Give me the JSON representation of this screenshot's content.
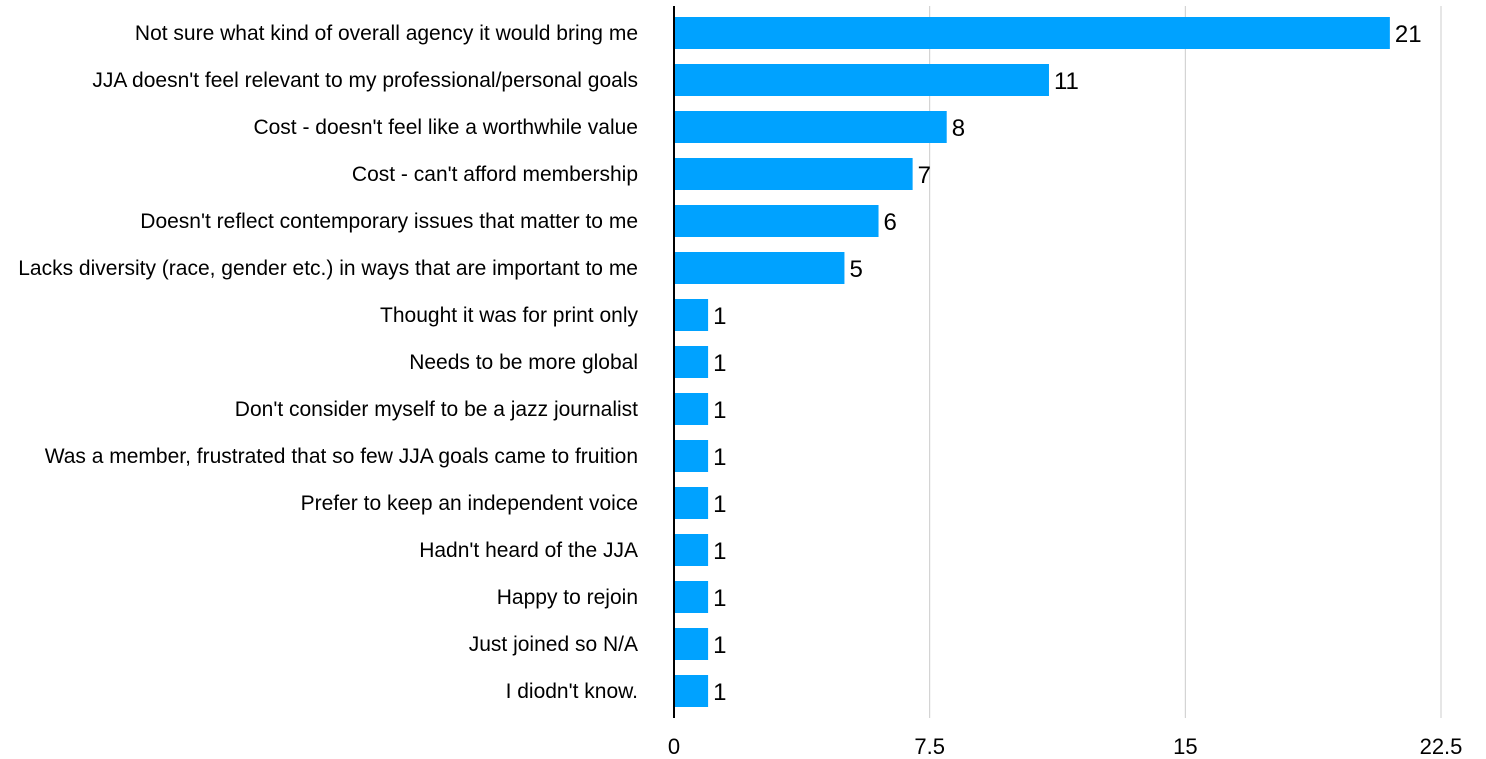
{
  "chart_data": {
    "type": "bar",
    "orientation": "horizontal",
    "categories": [
      "Not sure what kind of overall agency it would bring me",
      "JJA doesn't feel relevant to my professional/personal goals",
      "Cost - doesn't feel like a worthwhile value",
      "Cost - can't afford membership",
      "Doesn't reflect contemporary issues that matter to me",
      "Lacks diversity (race, gender etc.) in ways that are important to me",
      "Thought it was for print only",
      "Needs to be more global",
      "Don't consider myself to be a jazz journalist",
      "Was a member, frustrated that so few JJA goals came to fruition",
      "Prefer to keep an independent voice",
      "Hadn't heard of the JJA",
      "Happy to rejoin",
      "Just joined so N/A",
      "I diodn't know."
    ],
    "values": [
      21,
      11,
      8,
      7,
      6,
      5,
      1,
      1,
      1,
      1,
      1,
      1,
      1,
      1,
      1
    ],
    "value_labels": [
      "21",
      "11",
      "8",
      "7",
      "6",
      "5",
      "1",
      "1",
      "1",
      "1",
      "1",
      "1",
      "1",
      "1",
      "1"
    ],
    "xlim": [
      0,
      22.5
    ],
    "xticks": [
      0,
      7.5,
      15,
      22.5
    ],
    "xtick_labels": [
      "0",
      "7.5",
      "15",
      "22.5"
    ],
    "title": "",
    "xlabel": "",
    "ylabel": "",
    "grid": "vertical",
    "legend": "none",
    "colors": {
      "bar": "#00A2FF",
      "grid": "#CCCCCC",
      "axis": "#000000",
      "text": "#000000"
    }
  }
}
